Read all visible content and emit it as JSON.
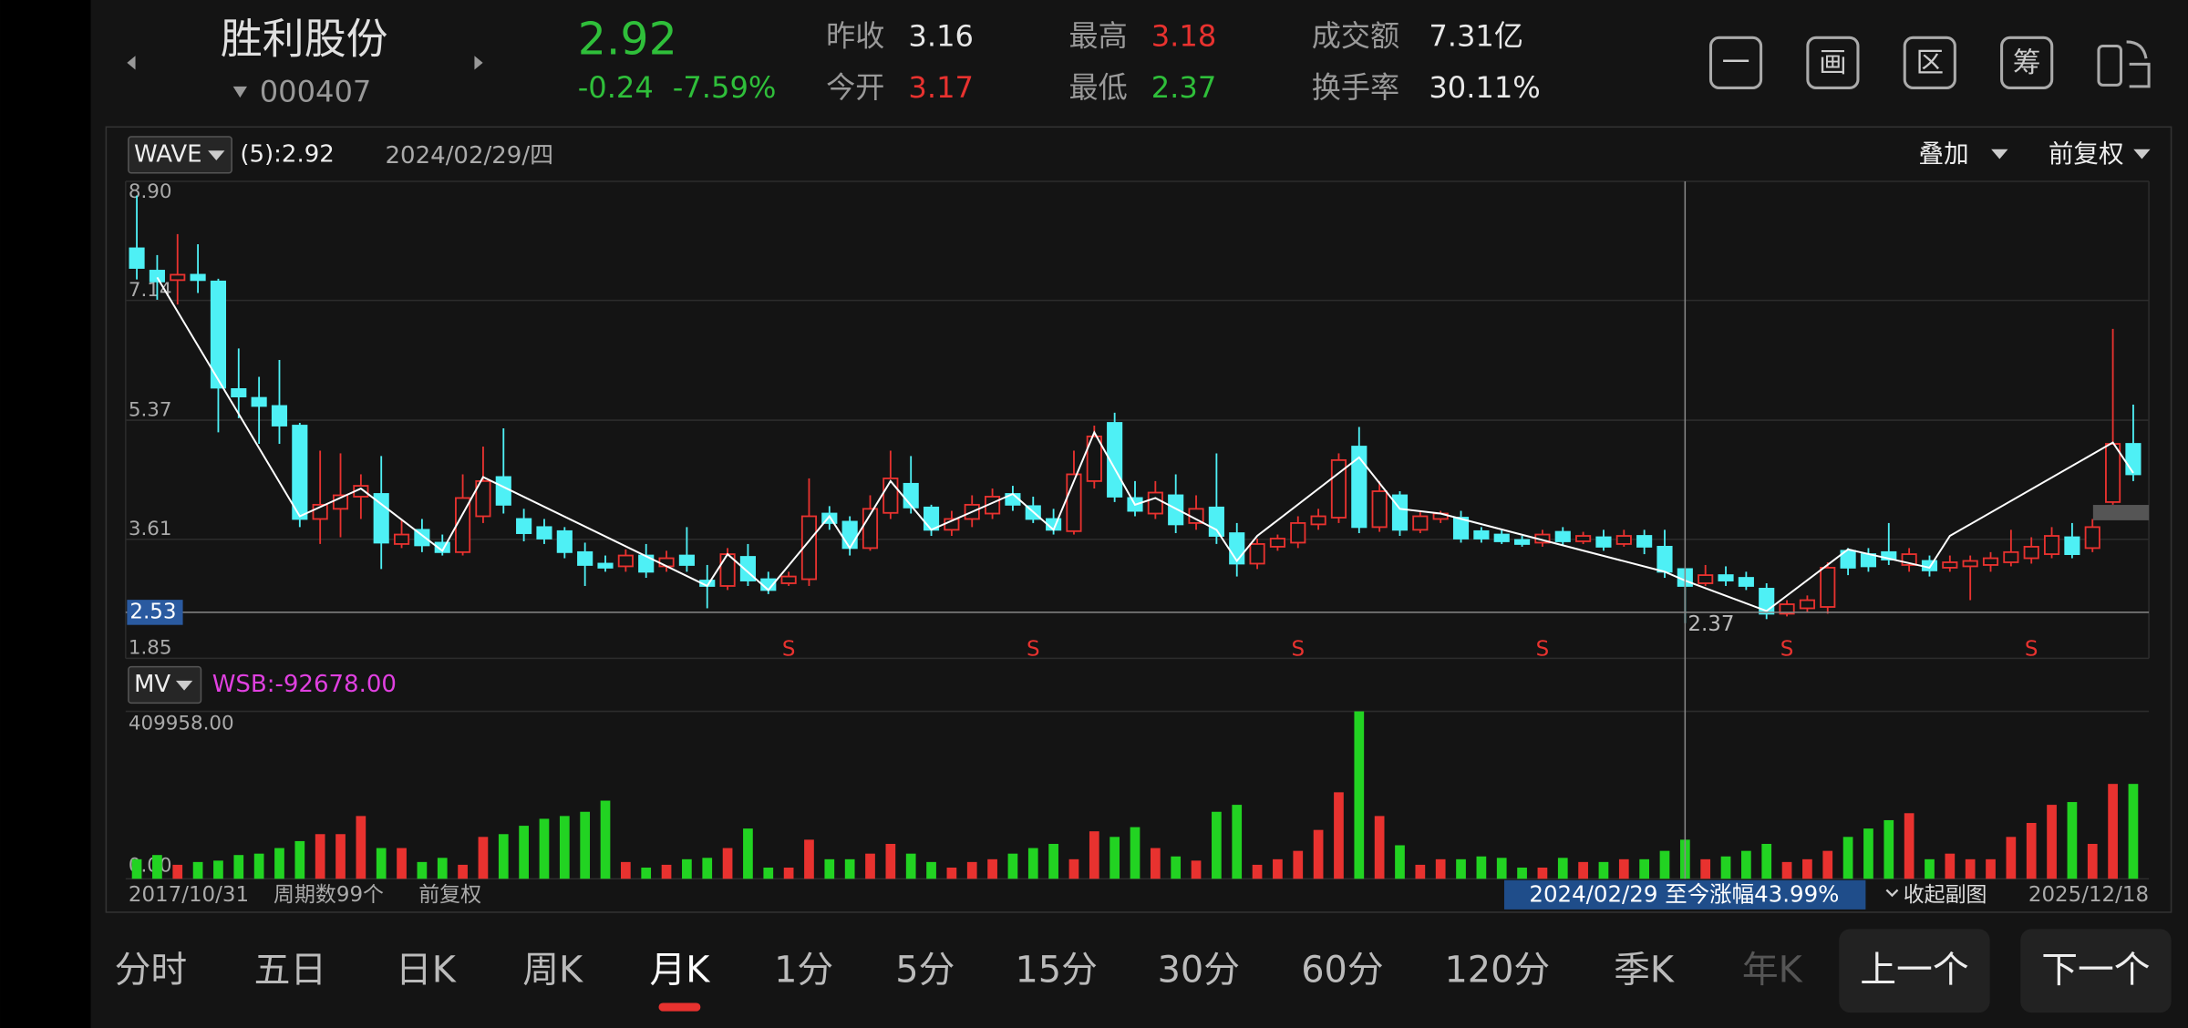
{
  "header": {
    "name": "胜利股份",
    "code": "000407",
    "price": 2.92,
    "change": "-0.24",
    "change_pct": "-7.59%",
    "stats": [
      {
        "label": "昨收",
        "value": "3.16",
        "color": "#e8e8e8"
      },
      {
        "label": "今开",
        "value": "3.17",
        "color": "#e8322f"
      },
      {
        "label": "最高",
        "value": "3.18",
        "color": "#e8322f"
      },
      {
        "label": "最低",
        "value": "2.37",
        "color": "#2fbf3a"
      },
      {
        "label": "成交额",
        "value": "7.31亿",
        "color": "#e8e8e8"
      },
      {
        "label": "换手率",
        "value": "30.11%",
        "color": "#e8e8e8"
      }
    ],
    "tools": [
      "一",
      "画",
      "区",
      "筹"
    ]
  },
  "chart": {
    "indicator": "WAVE",
    "indicator_value": "(5):2.92",
    "date": "2024/02/29/四",
    "overlay": "叠加",
    "adjust": "前复权",
    "ylim": [
      1.85,
      8.9
    ],
    "yticks": [
      {
        "value": 8.9,
        "label": "8.90"
      },
      7.14,
      5.37,
      3.61,
      1.85
    ],
    "colors": {
      "up": "#e8322f",
      "down": "#4ef0f5",
      "wave": "#ffffff"
    },
    "open": [
      7.91,
      7.58,
      7.44,
      7.52,
      7.42,
      5.83,
      5.7,
      5.58,
      5.29,
      3.91,
      4.06,
      4.24,
      4.28,
      3.54,
      3.75,
      3.56,
      3.42,
      3.95,
      4.53,
      3.91,
      3.79,
      3.73,
      3.42,
      3.25,
      3.21,
      3.37,
      3.21,
      3.37,
      3.0,
      2.92,
      3.35,
      3.02,
      2.96,
      3.02,
      3.99,
      3.87,
      3.48,
      4.0,
      4.43,
      4.08,
      3.75,
      3.91,
      3.99,
      4.28,
      4.1,
      3.91,
      3.73,
      4.47,
      5.33,
      4.22,
      3.99,
      4.26,
      3.85,
      4.08,
      3.7,
      3.25,
      3.5,
      3.56,
      3.83,
      3.93,
      4.98,
      3.79,
      4.26,
      3.75,
      3.91,
      3.93,
      3.73,
      3.68,
      3.6,
      3.56,
      3.72,
      3.58,
      3.64,
      3.54,
      3.66,
      3.5,
      3.17,
      2.96,
      3.08,
      3.04,
      2.88,
      2.51,
      2.59,
      2.61,
      3.44,
      3.39,
      3.42,
      3.23,
      3.29,
      3.19,
      3.21,
      3.23,
      3.27,
      3.33,
      3.39,
      3.64,
      3.48,
      4.16,
      5.02
    ],
    "close": [
      7.62,
      7.42,
      7.52,
      7.44,
      5.85,
      5.72,
      5.58,
      5.29,
      3.91,
      4.12,
      4.26,
      4.4,
      3.56,
      3.68,
      3.52,
      3.42,
      4.22,
      4.47,
      4.12,
      3.7,
      3.62,
      3.42,
      3.23,
      3.19,
      3.37,
      3.13,
      3.33,
      3.23,
      2.92,
      3.39,
      3.0,
      2.86,
      3.06,
      3.95,
      3.85,
      3.48,
      4.06,
      4.51,
      4.08,
      3.75,
      3.91,
      4.12,
      4.24,
      4.12,
      3.91,
      3.75,
      4.57,
      5.13,
      4.24,
      4.03,
      4.3,
      3.83,
      4.06,
      3.66,
      3.25,
      3.54,
      3.62,
      3.85,
      3.95,
      4.78,
      3.79,
      4.32,
      3.75,
      3.95,
      3.99,
      3.62,
      3.62,
      3.58,
      3.54,
      3.68,
      3.58,
      3.66,
      3.5,
      3.66,
      3.5,
      3.13,
      2.92,
      3.08,
      3.0,
      2.92,
      2.51,
      2.65,
      2.71,
      3.19,
      3.19,
      3.21,
      3.31,
      3.39,
      3.15,
      3.27,
      3.29,
      3.33,
      3.42,
      3.5,
      3.66,
      3.39,
      3.79,
      5.02,
      4.57
    ],
    "high": [
      8.69,
      7.81,
      8.12,
      7.97,
      7.46,
      6.43,
      6.01,
      6.26,
      5.33,
      4.92,
      4.88,
      4.57,
      4.84,
      3.91,
      3.91,
      3.68,
      4.57,
      4.98,
      5.25,
      4.06,
      3.91,
      3.79,
      3.56,
      3.37,
      3.46,
      3.54,
      3.44,
      3.79,
      3.23,
      3.48,
      3.54,
      3.13,
      3.13,
      4.51,
      4.1,
      3.95,
      4.26,
      4.92,
      4.84,
      4.12,
      4.03,
      4.26,
      4.36,
      4.4,
      4.24,
      4.06,
      4.92,
      5.29,
      5.48,
      4.47,
      4.47,
      4.57,
      4.26,
      4.88,
      3.85,
      3.62,
      3.68,
      3.95,
      4.06,
      4.88,
      5.27,
      4.47,
      4.32,
      4.01,
      4.03,
      4.03,
      3.79,
      3.75,
      3.66,
      3.75,
      3.79,
      3.72,
      3.75,
      3.75,
      3.75,
      3.75,
      3.18,
      3.23,
      3.21,
      3.13,
      2.96,
      2.71,
      2.78,
      3.27,
      3.48,
      3.48,
      3.85,
      3.48,
      3.37,
      3.37,
      3.37,
      3.42,
      3.75,
      3.64,
      3.79,
      3.85,
      3.91,
      6.72,
      5.6
    ],
    "low": [
      7.45,
      7.15,
      7.08,
      7.25,
      5.19,
      5.4,
      5.02,
      5.02,
      3.79,
      3.54,
      3.64,
      3.91,
      3.17,
      3.48,
      3.42,
      3.37,
      3.37,
      3.85,
      3.99,
      3.58,
      3.54,
      3.33,
      2.92,
      3.13,
      3.13,
      3.04,
      3.13,
      3.13,
      2.59,
      2.86,
      2.92,
      2.8,
      2.92,
      2.92,
      3.75,
      3.37,
      3.44,
      3.91,
      3.99,
      3.66,
      3.66,
      3.79,
      3.91,
      4.03,
      3.85,
      3.68,
      3.68,
      4.36,
      4.16,
      3.95,
      3.91,
      3.7,
      3.75,
      3.54,
      3.06,
      3.17,
      3.44,
      3.48,
      3.75,
      3.85,
      3.7,
      3.72,
      3.66,
      3.7,
      3.85,
      3.56,
      3.56,
      3.54,
      3.5,
      3.5,
      3.52,
      3.54,
      3.44,
      3.5,
      3.39,
      3.04,
      2.37,
      2.92,
      2.92,
      2.86,
      2.43,
      2.47,
      2.53,
      2.51,
      3.08,
      3.13,
      3.23,
      3.13,
      3.06,
      3.13,
      2.71,
      3.13,
      3.21,
      3.25,
      3.33,
      3.33,
      3.42,
      4.12,
      4.47
    ],
    "wave": {
      "x": [
        1,
        8,
        11,
        15,
        17,
        28,
        29,
        31,
        34,
        35,
        37,
        39,
        43,
        45,
        47,
        49,
        50,
        53,
        54,
        55,
        60,
        62,
        64,
        75,
        76,
        80,
        84,
        88,
        89,
        97,
        98
      ],
      "values": [
        7.48,
        3.95,
        4.36,
        3.44,
        4.53,
        2.92,
        3.39,
        2.86,
        3.95,
        3.48,
        4.47,
        3.75,
        4.28,
        3.75,
        5.19,
        4.12,
        4.22,
        3.75,
        3.29,
        3.66,
        4.82,
        4.06,
        3.99,
        3.13,
        3.0,
        2.55,
        3.46,
        3.19,
        3.66,
        5.04,
        4.59
      ]
    },
    "signals": [
      {
        "index": 32,
        "label": "S"
      },
      {
        "index": 44,
        "label": "S"
      },
      {
        "index": 57,
        "label": "S"
      },
      {
        "index": 69,
        "label": "S"
      },
      {
        "index": 81,
        "label": "S"
      },
      {
        "index": 93,
        "label": "S"
      }
    ],
    "crosshair": {
      "index": 76,
      "value": 2.53,
      "label": "2.53"
    },
    "low_marker": {
      "index": 76,
      "value": 2.37,
      "label": "2.37"
    }
  },
  "volume": {
    "indicator": "MV",
    "wsb": "WSB:-92678.00",
    "ylim": [
      0,
      409958
    ],
    "yticks": [
      {
        "value": 409958,
        "label": "409958.00"
      },
      {
        "value": 0,
        "label": "0.00"
      }
    ],
    "colors": {
      "up": "#e8322f",
      "down": "#22d322"
    },
    "values": [
      47800,
      58100,
      34200,
      41000,
      44400,
      58100,
      61500,
      75200,
      92200,
      109300,
      109300,
      153700,
      75200,
      75200,
      41000,
      51200,
      34200,
      102500,
      109300,
      129800,
      146900,
      153700,
      164000,
      191300,
      41000,
      27300,
      34200,
      47800,
      51200,
      75200,
      123000,
      27300,
      27300,
      95700,
      47800,
      47800,
      61500,
      85400,
      61500,
      41000,
      27300,
      41000,
      47800,
      61500,
      75200,
      85400,
      47800,
      116200,
      102500,
      126400,
      75200,
      54700,
      44400,
      164000,
      181100,
      34200,
      47800,
      68300,
      119600,
      211800,
      409958,
      153700,
      82000,
      34200,
      47800,
      47800,
      54700,
      51200,
      27300,
      27300,
      51200,
      41000,
      41000,
      47800,
      47800,
      68300,
      95700,
      47800,
      54700,
      68300,
      85400,
      41000,
      47800,
      68300,
      102500,
      123000,
      143500,
      160600,
      47800,
      61500,
      47800,
      47800,
      102500,
      136700,
      181100,
      187900,
      85400,
      232300,
      232300
    ]
  },
  "footer": {
    "start_date": "2017/10/31",
    "periods": "周期数99个",
    "adjust": "前复权",
    "gain": "2024/02/29 至今涨幅43.99%",
    "collapse": "收起副图",
    "end_date": "2025/12/18"
  },
  "tabs": {
    "items": [
      "分时",
      "五日",
      "日K",
      "周K",
      "月K",
      "1分",
      "5分",
      "15分",
      "30分",
      "60分",
      "120分",
      "季K",
      "年K"
    ],
    "active": 4
  },
  "buttons": [
    "上一个",
    "下一个"
  ]
}
